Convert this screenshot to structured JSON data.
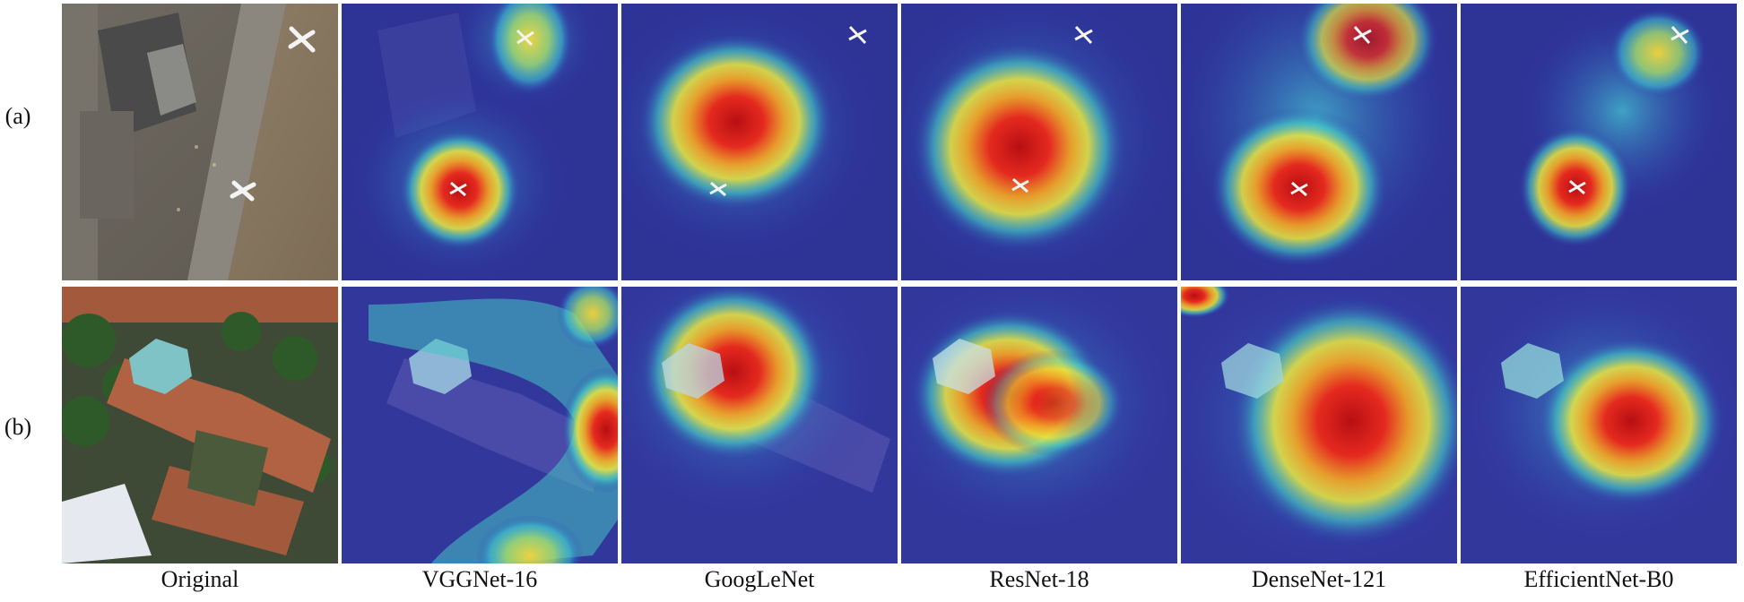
{
  "row_labels": [
    "(a)",
    "(b)"
  ],
  "column_labels": [
    "Original",
    "VGGNet-16",
    "GoogLeNet",
    "ResNet-18",
    "DenseNet-121",
    "EfficientNet-B0"
  ],
  "colors": {
    "heat_low": "#2a2fae",
    "heat_mid": "#38c6d2",
    "heat_warm": "#f2e33c",
    "heat_high": "#d6161a",
    "airport_ground": "#8d7b63",
    "building_roof": "#b06242",
    "trees": "#2e5a2a"
  }
}
